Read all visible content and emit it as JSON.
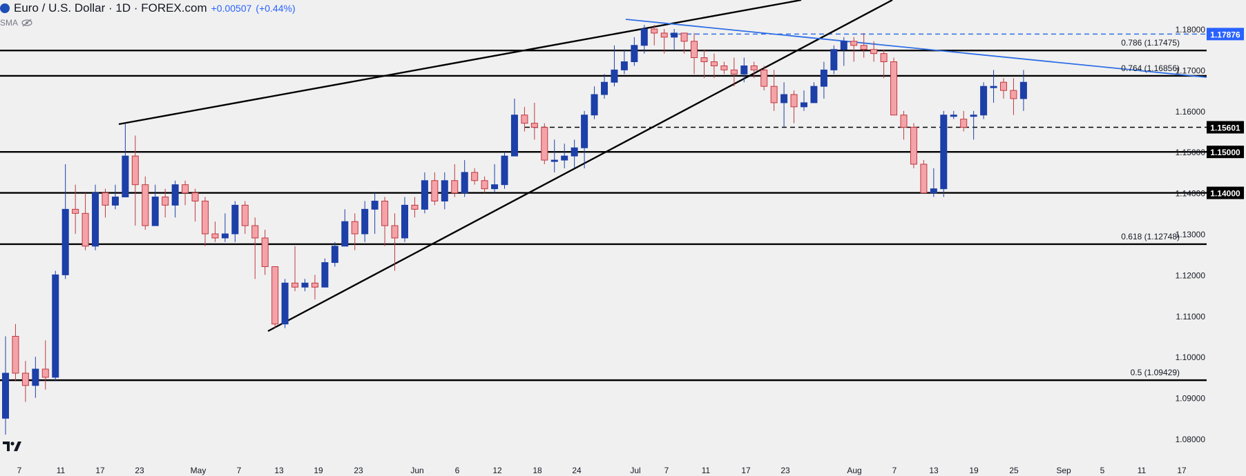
{
  "header": {
    "symbol_title": "Euro / U.S. Dollar · 1D · FOREX.com",
    "change": "+0.00507",
    "change_pct": "(+0.44%)",
    "indicator": "SMA"
  },
  "icons": [
    "currency-logo-icon",
    "eye-hidden-icon",
    "tradingview-logo-icon"
  ],
  "colors": {
    "up": "#1c3fa8",
    "down": "#f4a3a8",
    "down_border": "#c0383f",
    "blue_line": "#2e6ee6",
    "label_blue": "#2962ff"
  },
  "chart_data": {
    "type": "candlestick",
    "title": "Euro / U.S. Dollar · 1D · FOREX.com",
    "ylim": [
      1.078,
      1.182
    ],
    "y_ticks": [
      "1.18000",
      "1.17000",
      "1.16000",
      "1.15000",
      "1.14000",
      "1.13000",
      "1.12000",
      "1.11000",
      "1.10000",
      "1.09000",
      "1.08000"
    ],
    "x_ticks": [
      "7",
      "11",
      "17",
      "23",
      "May",
      "7",
      "13",
      "19",
      "23",
      "Jun",
      "6",
      "12",
      "18",
      "24",
      "Jul",
      "7",
      "11",
      "17",
      "23",
      "Aug",
      "7",
      "13",
      "19",
      "25",
      "Sep",
      "5",
      "11",
      "17"
    ],
    "price_labels": [
      "1.17876",
      "1.15601",
      "1.15000",
      "1.14000"
    ],
    "level_labels": [
      "0.786 (1.17475)",
      "0.764 (1.16856)",
      "0.618 (1.12748)",
      "0.5 (1.09429)"
    ],
    "horizontal_levels": [
      1.17475,
      1.16856,
      1.15,
      1.14,
      1.12748,
      1.09429
    ],
    "dashed_levels": [
      1.17876,
      1.15601
    ],
    "candles": [
      [
        1.085,
        1.096,
        1.081,
        1.105
      ],
      [
        1.105,
        1.096,
        1.094,
        1.108
      ],
      [
        1.096,
        1.093,
        1.089,
        1.099
      ],
      [
        1.093,
        1.097,
        1.09,
        1.1
      ],
      [
        1.097,
        1.095,
        1.092,
        1.104
      ],
      [
        1.095,
        1.12,
        1.094,
        1.121
      ],
      [
        1.12,
        1.136,
        1.119,
        1.147
      ],
      [
        1.136,
        1.135,
        1.13,
        1.142
      ],
      [
        1.135,
        1.127,
        1.126,
        1.14
      ],
      [
        1.127,
        1.14,
        1.126,
        1.142
      ],
      [
        1.14,
        1.137,
        1.134,
        1.141
      ],
      [
        1.137,
        1.139,
        1.136,
        1.142
      ],
      [
        1.139,
        1.149,
        1.139,
        1.157
      ],
      [
        1.149,
        1.142,
        1.132,
        1.154
      ],
      [
        1.142,
        1.132,
        1.131,
        1.144
      ],
      [
        1.132,
        1.139,
        1.132,
        1.142
      ],
      [
        1.139,
        1.137,
        1.134,
        1.141
      ],
      [
        1.137,
        1.142,
        1.134,
        1.143
      ],
      [
        1.142,
        1.14,
        1.137,
        1.143
      ],
      [
        1.14,
        1.138,
        1.133,
        1.141
      ],
      [
        1.138,
        1.13,
        1.127,
        1.139
      ],
      [
        1.13,
        1.129,
        1.128,
        1.133
      ],
      [
        1.129,
        1.13,
        1.128,
        1.135
      ],
      [
        1.13,
        1.137,
        1.128,
        1.138
      ],
      [
        1.137,
        1.132,
        1.13,
        1.138
      ],
      [
        1.132,
        1.129,
        1.119,
        1.134
      ],
      [
        1.129,
        1.122,
        1.12,
        1.131
      ],
      [
        1.122,
        1.108,
        1.107,
        1.122
      ],
      [
        1.108,
        1.118,
        1.107,
        1.119
      ],
      [
        1.118,
        1.117,
        1.116,
        1.127
      ],
      [
        1.117,
        1.118,
        1.116,
        1.119
      ],
      [
        1.118,
        1.117,
        1.114,
        1.12
      ],
      [
        1.117,
        1.123,
        1.117,
        1.124
      ],
      [
        1.123,
        1.127,
        1.122,
        1.128
      ],
      [
        1.127,
        1.133,
        1.127,
        1.136
      ],
      [
        1.133,
        1.13,
        1.126,
        1.135
      ],
      [
        1.13,
        1.136,
        1.128,
        1.138
      ],
      [
        1.136,
        1.138,
        1.13,
        1.14
      ],
      [
        1.138,
        1.132,
        1.127,
        1.139
      ],
      [
        1.132,
        1.129,
        1.121,
        1.135
      ],
      [
        1.129,
        1.137,
        1.128,
        1.139
      ],
      [
        1.137,
        1.136,
        1.134,
        1.139
      ],
      [
        1.136,
        1.143,
        1.135,
        1.145
      ],
      [
        1.143,
        1.138,
        1.137,
        1.145
      ],
      [
        1.138,
        1.143,
        1.136,
        1.145
      ],
      [
        1.143,
        1.14,
        1.139,
        1.147
      ],
      [
        1.14,
        1.145,
        1.139,
        1.148
      ],
      [
        1.145,
        1.143,
        1.142,
        1.146
      ],
      [
        1.143,
        1.141,
        1.14,
        1.144
      ],
      [
        1.141,
        1.142,
        1.14,
        1.147
      ],
      [
        1.142,
        1.149,
        1.141,
        1.15
      ],
      [
        1.149,
        1.159,
        1.149,
        1.163
      ],
      [
        1.159,
        1.157,
        1.155,
        1.161
      ],
      [
        1.157,
        1.156,
        1.153,
        1.162
      ],
      [
        1.156,
        1.148,
        1.147,
        1.157
      ],
      [
        1.148,
        1.148,
        1.145,
        1.153
      ],
      [
        1.148,
        1.149,
        1.146,
        1.152
      ],
      [
        1.149,
        1.151,
        1.146,
        1.153
      ],
      [
        1.151,
        1.159,
        1.146,
        1.16
      ],
      [
        1.159,
        1.164,
        1.158,
        1.166
      ],
      [
        1.164,
        1.167,
        1.163,
        1.169
      ],
      [
        1.167,
        1.17,
        1.166,
        1.176
      ],
      [
        1.17,
        1.172,
        1.169,
        1.175
      ],
      [
        1.172,
        1.176,
        1.171,
        1.178
      ],
      [
        1.176,
        1.18,
        1.174,
        1.181
      ],
      [
        1.18,
        1.179,
        1.176,
        1.181
      ],
      [
        1.179,
        1.178,
        1.174,
        1.18
      ],
      [
        1.178,
        1.179,
        1.175,
        1.18
      ],
      [
        1.179,
        1.177,
        1.174,
        1.179
      ],
      [
        1.177,
        1.173,
        1.169,
        1.179
      ],
      [
        1.173,
        1.172,
        1.168,
        1.175
      ],
      [
        1.172,
        1.171,
        1.168,
        1.174
      ],
      [
        1.171,
        1.17,
        1.169,
        1.172
      ],
      [
        1.17,
        1.169,
        1.166,
        1.173
      ],
      [
        1.169,
        1.171,
        1.167,
        1.173
      ],
      [
        1.171,
        1.17,
        1.168,
        1.172
      ],
      [
        1.17,
        1.166,
        1.165,
        1.171
      ],
      [
        1.166,
        1.162,
        1.16,
        1.17
      ],
      [
        1.162,
        1.164,
        1.156,
        1.167
      ],
      [
        1.164,
        1.161,
        1.157,
        1.165
      ],
      [
        1.161,
        1.162,
        1.16,
        1.165
      ],
      [
        1.162,
        1.166,
        1.162,
        1.167
      ],
      [
        1.166,
        1.17,
        1.163,
        1.172
      ],
      [
        1.17,
        1.175,
        1.169,
        1.176
      ],
      [
        1.175,
        1.177,
        1.171,
        1.178
      ],
      [
        1.177,
        1.176,
        1.172,
        1.178
      ],
      [
        1.176,
        1.175,
        1.173,
        1.179
      ],
      [
        1.175,
        1.174,
        1.172,
        1.177
      ],
      [
        1.174,
        1.172,
        1.168,
        1.175
      ],
      [
        1.172,
        1.159,
        1.159,
        1.173
      ],
      [
        1.159,
        1.156,
        1.153,
        1.16
      ],
      [
        1.156,
        1.147,
        1.146,
        1.157
      ],
      [
        1.147,
        1.14,
        1.14,
        1.148
      ],
      [
        1.14,
        1.141,
        1.139,
        1.146
      ],
      [
        1.141,
        1.159,
        1.139,
        1.16
      ],
      [
        1.159,
        1.159,
        1.158,
        1.16
      ],
      [
        1.158,
        1.156,
        1.155,
        1.16
      ],
      [
        1.159,
        1.159,
        1.153,
        1.16
      ],
      [
        1.159,
        1.166,
        1.158,
        1.167
      ],
      [
        1.166,
        1.166,
        1.162,
        1.17
      ],
      [
        1.167,
        1.165,
        1.163,
        1.168
      ],
      [
        1.165,
        1.163,
        1.159,
        1.168
      ],
      [
        1.163,
        1.167,
        1.16,
        1.17
      ]
    ]
  }
}
